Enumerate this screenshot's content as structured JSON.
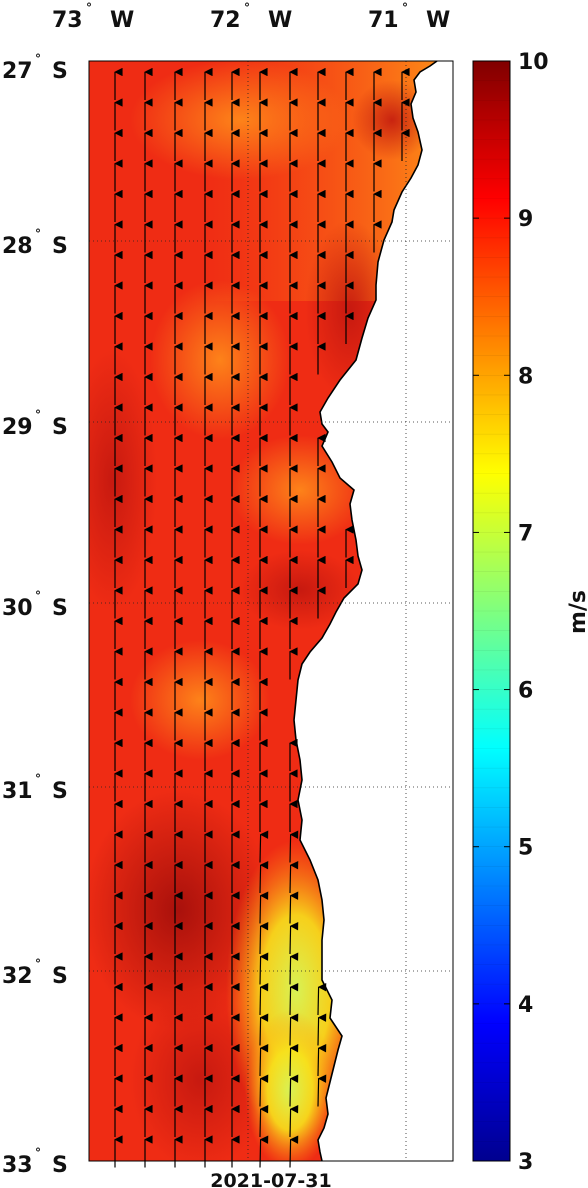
{
  "map": {
    "lon_labels": [
      {
        "deg": "73",
        "hem": "W"
      },
      {
        "deg": "72",
        "hem": "W"
      },
      {
        "deg": "71",
        "hem": "W"
      }
    ],
    "lat_labels": [
      {
        "deg": "27",
        "hem": "S"
      },
      {
        "deg": "28",
        "hem": "S"
      },
      {
        "deg": "29",
        "hem": "S"
      },
      {
        "deg": "30",
        "hem": "S"
      },
      {
        "deg": "31",
        "hem": "S"
      },
      {
        "deg": "32",
        "hem": "S"
      },
      {
        "deg": "33",
        "hem": "S"
      }
    ],
    "lon_range": [
      -73.0,
      -70.8
    ],
    "lat_range": [
      -33.0,
      -27.0
    ],
    "date_label": "2021-07-31",
    "wind_direction": "northward arrows (wind vectors)",
    "grid": "dotted"
  },
  "colorbar": {
    "unit_label": "m/s",
    "min": 3,
    "max": 10,
    "tick_labels": [
      "10",
      "9",
      "8",
      "7",
      "6",
      "5",
      "4",
      "3"
    ],
    "colormap": "jet"
  },
  "colors": {
    "field_base": "#ef2a14",
    "high_wind": "#a50f0b",
    "low_wind": "#f5e31c",
    "land": "#ffffff",
    "coast": "#000000"
  }
}
